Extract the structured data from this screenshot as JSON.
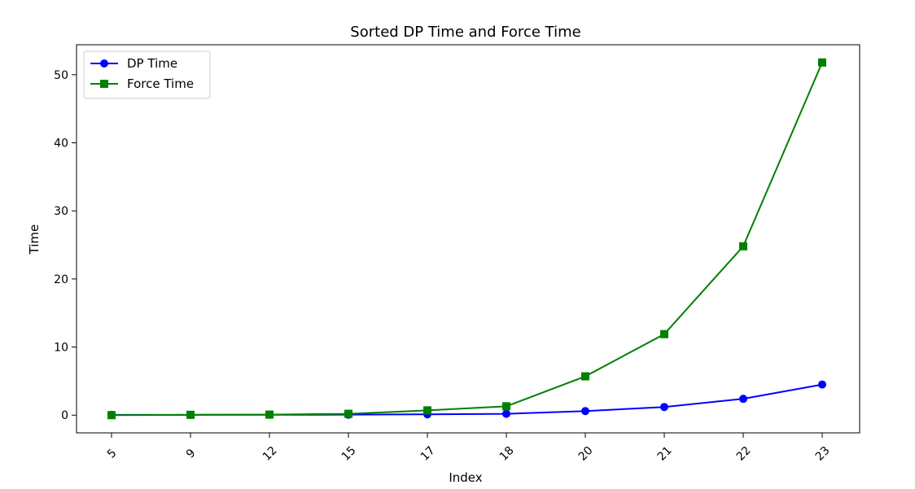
{
  "chart_data": {
    "type": "line",
    "title": "Sorted DP Time and Force Time",
    "xlabel": "Index",
    "ylabel": "Time",
    "categories": [
      "5",
      "9",
      "12",
      "15",
      "17",
      "18",
      "20",
      "21",
      "22",
      "23"
    ],
    "series": [
      {
        "name": "DP Time",
        "color": "#0000ff",
        "marker": "circle",
        "values": [
          0.05,
          0.05,
          0.06,
          0.07,
          0.12,
          0.2,
          0.6,
          1.2,
          2.4,
          4.5
        ]
      },
      {
        "name": "Force Time",
        "color": "#008000",
        "marker": "square",
        "values": [
          0.0,
          0.05,
          0.08,
          0.2,
          0.7,
          1.3,
          5.7,
          11.9,
          24.8,
          51.8
        ]
      }
    ],
    "ylim": [
      -2.6,
      54.4
    ],
    "yticks": [
      0,
      10,
      20,
      30,
      40,
      50
    ],
    "grid": false,
    "legend_position": "top-left",
    "xtick_rotation": -45
  }
}
